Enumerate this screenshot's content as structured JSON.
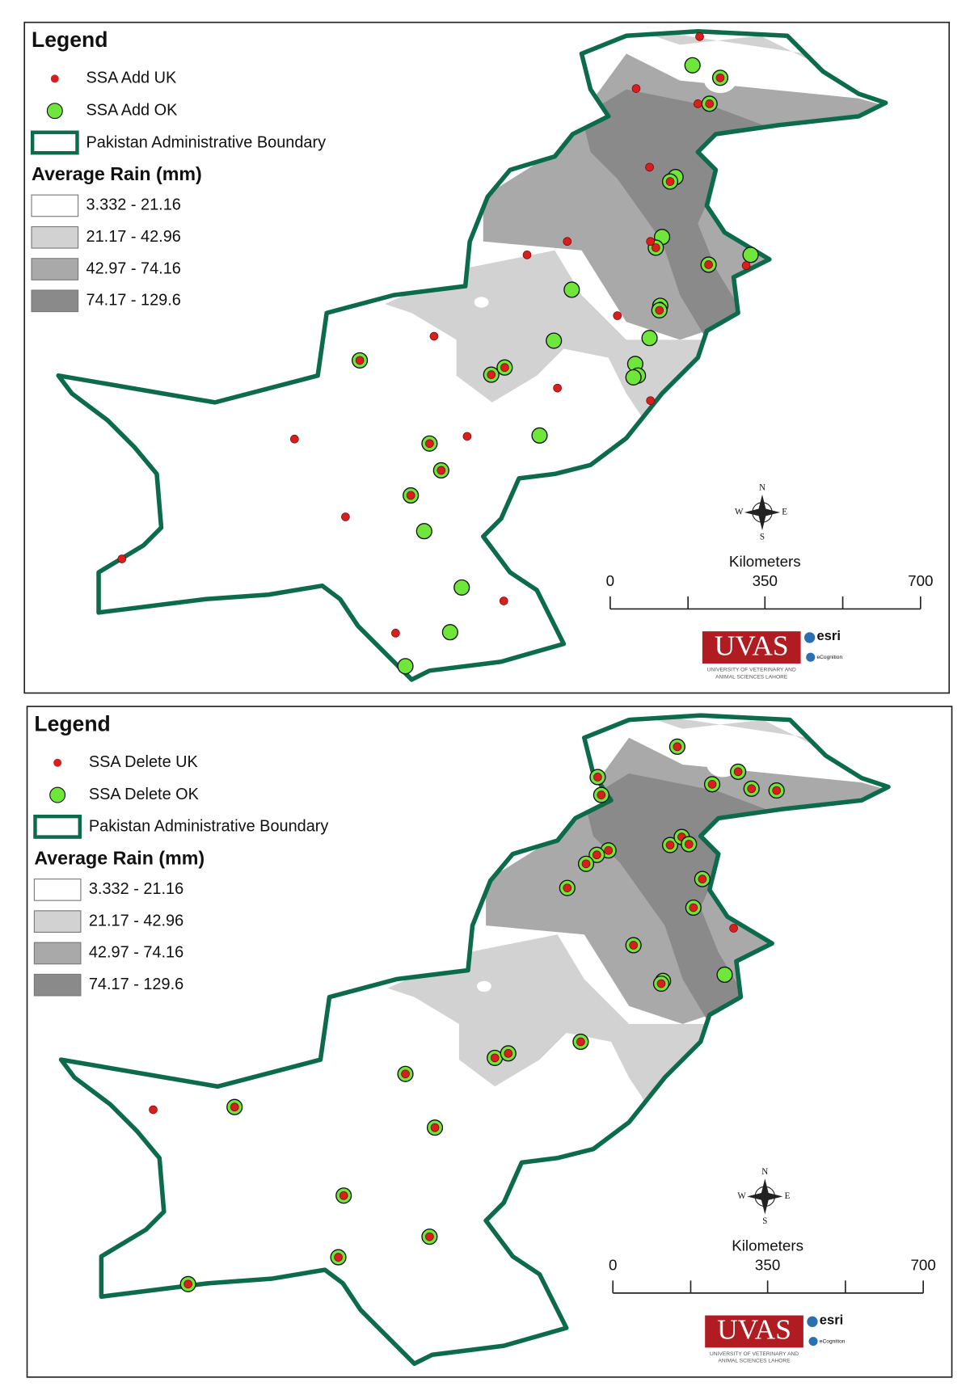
{
  "maps": [
    {
      "legend": {
        "title": "Legend",
        "items": [
          "SSA Add UK",
          "SSA Add OK",
          "Pakistan Administrative Boundary"
        ]
      },
      "rain": {
        "title": "Average Rain (mm)",
        "classes": [
          "3.332 - 21.16",
          "21.17 - 42.96",
          "42.97 - 74.16",
          "74.17 - 129.6"
        ]
      },
      "scale": {
        "unit": "Kilometers",
        "ticks": [
          0,
          350,
          700
        ]
      }
    },
    {
      "legend": {
        "title": "Legend",
        "items": [
          "SSA Delete UK",
          "SSA Delete OK",
          "Pakistan Administrative Boundary"
        ]
      },
      "rain": {
        "title": "Average Rain (mm)",
        "classes": [
          "3.332 - 21.16",
          "21.17 - 42.96",
          "42.97 - 74.16",
          "74.17 - 129.6"
        ]
      },
      "scale": {
        "unit": "Kilometers",
        "ticks": [
          0,
          350,
          700
        ]
      }
    }
  ],
  "compass": {
    "n": "N",
    "e": "E",
    "s": "S",
    "w": "W"
  },
  "logo": {
    "name": "UVAS",
    "partner1": "esri",
    "partner2": "eCognition",
    "university": [
      "UNIVERSITY OF VETERINARY AND",
      "ANIMAL SCIENCES LAHORE"
    ]
  }
}
